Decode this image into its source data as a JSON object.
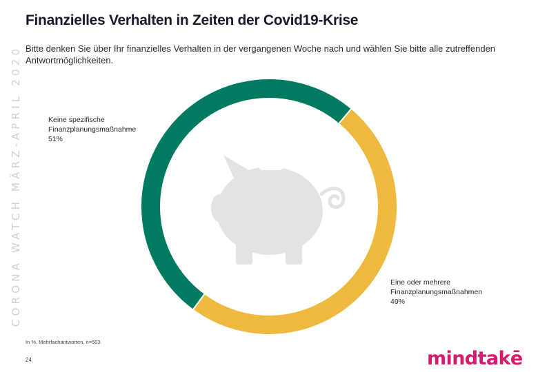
{
  "side_label": "CORONA WATCH MÄRZ-APRIL 2020",
  "title": "Finanzielles Verhalten in Zeiten der Covid19-Krise",
  "subtitle": "Bitte denken Sie über Ihr finanzielles Verhalten in der vergangenen Woche nach und wählen Sie bitte alle zutreffenden Antwortmöglichkeiten.",
  "footnote": "In %, Mehrfachantworten, n=503",
  "page_number": "24",
  "logo": "mindtakē",
  "icon": "piggy-bank-icon",
  "chart_data": {
    "type": "pie",
    "donut": true,
    "title": "Finanzielles Verhalten in Zeiten der Covid19-Krise",
    "unit": "%",
    "slices": [
      {
        "label_line1": "Keine spezifische",
        "label_line2": "Finanzplanungsmaßnahme",
        "value_text": "51%",
        "value": 51,
        "color": "#007b62"
      },
      {
        "label_line1": "Eine oder mehrere",
        "label_line2": "Finanzplanungsmaßnahmen",
        "value_text": "49%",
        "value": 49,
        "color": "#efb93f"
      }
    ]
  }
}
